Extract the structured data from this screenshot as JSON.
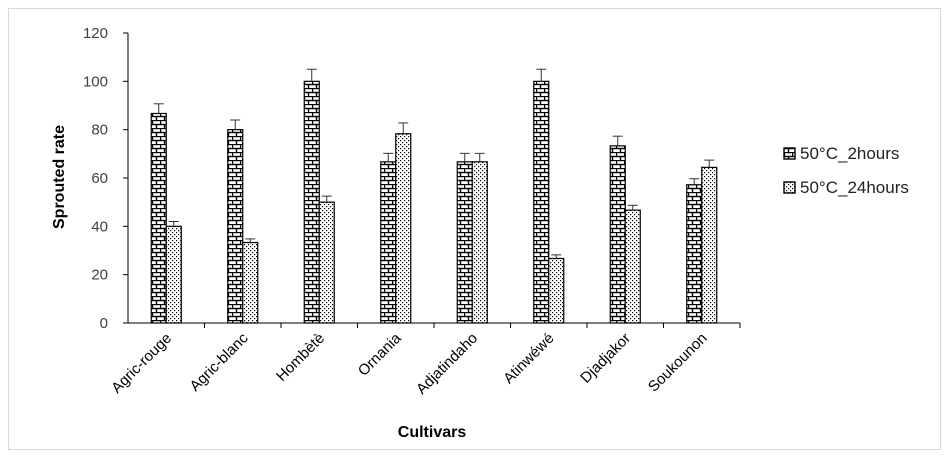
{
  "chart_data": {
    "type": "bar",
    "title": "",
    "xlabel": "Cultivars",
    "ylabel": "Sprouted rate",
    "ylim": [
      0,
      120
    ],
    "yticks": [
      0,
      20,
      40,
      60,
      80,
      100,
      120
    ],
    "error_bars": true,
    "legend_position": "right",
    "categories": [
      "Agric-rouge",
      "Agric-blanc",
      "Hombètè",
      "Ornania",
      "Adjatindaho",
      "Atinwéwé",
      "Djadjakor",
      "Soukounon"
    ],
    "series": [
      {
        "name": "50°C_2hours",
        "pattern": "brick",
        "values": [
          86.7,
          80,
          100,
          66.7,
          66.7,
          100,
          73.3,
          57.2
        ],
        "errors": [
          4,
          4,
          5,
          3.5,
          3.5,
          5,
          4,
          2.5
        ]
      },
      {
        "name": "50°C_24hours",
        "pattern": "dots",
        "values": [
          40,
          33.3,
          50,
          78.3,
          66.7,
          26.7,
          46.7,
          64.4
        ],
        "errors": [
          2,
          1.5,
          2.5,
          4.5,
          3.5,
          1.5,
          2,
          3
        ]
      }
    ]
  }
}
